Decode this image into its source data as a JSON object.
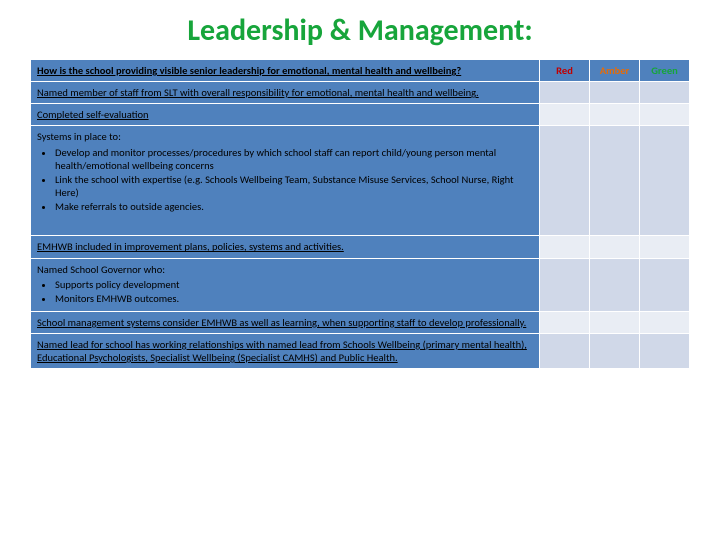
{
  "title_text": "Leadership & Management:",
  "title_color": "#17a53b",
  "table": {
    "header_bg": "#4f81bd",
    "row_light_bg": "#d0d8e8",
    "row_dark_bg": "#e9edf4",
    "border_color": "#ffffff",
    "columns": {
      "question": "How is the school providing visible senior leadership for emotional, mental health and wellbeing?",
      "rag": [
        {
          "label": "Red",
          "color": "#c00000"
        },
        {
          "label": "Amber",
          "color": "#e46c0a"
        },
        {
          "label": "Green",
          "color": "#17a53b"
        }
      ]
    },
    "rows": [
      {
        "text": "Named member of staff from SLT with overall responsibility for emotional, mental health and wellbeing."
      },
      {
        "text": "Completed self-evaluation"
      },
      {
        "lead": "Systems in place to:",
        "bullets": [
          "Develop and monitor processes/procedures by which school staff can report child/young person mental health/emotional wellbeing concerns",
          "Link the school with expertise (e.g. Schools Wellbeing Team, Substance Misuse Services, School Nurse, Right Here)",
          "Make referrals to outside agencies."
        ],
        "tall": true
      },
      {
        "text": "EMHWB included in improvement plans, policies, systems and activities."
      },
      {
        "lead": "Named School Governor who:",
        "bullets": [
          "Supports policy development",
          "Monitors EMHWB outcomes."
        ]
      },
      {
        "text": "School management systems consider EMHWB as well as learning, when supporting staff to develop professionally."
      },
      {
        "text": "Named lead for school has working relationships with named lead from Schools Wellbeing (primary mental health), Educational Psychologists, Specialist Wellbeing (Specialist CAMHS) and Public Health."
      }
    ]
  }
}
